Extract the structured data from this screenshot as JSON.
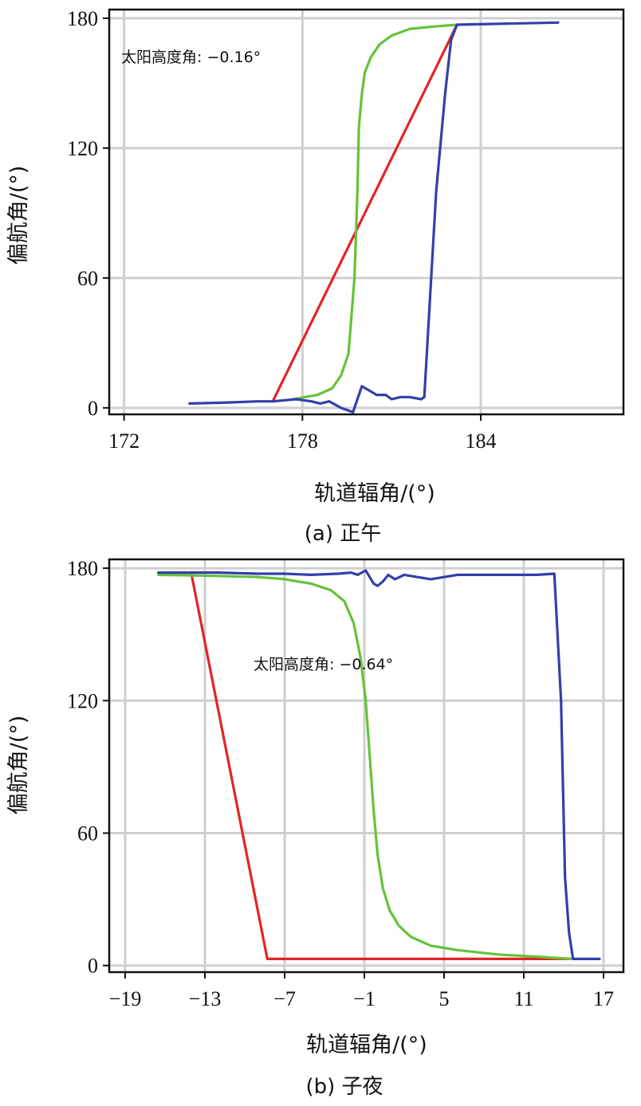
{
  "colors": {
    "red": "#e32424",
    "green": "#66c23a",
    "blue": "#3340a8",
    "grid": "#cfcfcf",
    "axis": "#111111"
  },
  "chart_data": [
    {
      "type": "line",
      "caption": "(a) 正午",
      "xlabel": "轨道辐角/(°)",
      "ylabel": "偏航角/(°)",
      "annotation": "太阳高度角: −0.16°",
      "xlim": [
        171.5,
        188.8
      ],
      "ylim": [
        -3,
        184
      ],
      "xticks": [
        172,
        178,
        184
      ],
      "xtick_labels": [
        "172",
        "178",
        "184"
      ],
      "yticks": [
        0,
        60,
        120,
        180
      ],
      "ytick_labels": [
        "0",
        "60",
        "120",
        "180"
      ],
      "grid": true,
      "series": [
        {
          "color": "red",
          "x": [
            177.0,
            183.2
          ],
          "y": [
            3,
            177
          ]
        },
        {
          "color": "green",
          "x": [
            177.7,
            178.5,
            179.0,
            179.3,
            179.55,
            179.75,
            179.85,
            179.9,
            180.0,
            180.1,
            180.3,
            180.6,
            181.0,
            181.6,
            182.3,
            183.2
          ],
          "y": [
            4,
            6,
            9,
            15,
            25,
            60,
            100,
            130,
            145,
            155,
            162,
            168,
            172,
            175,
            176,
            177
          ]
        },
        {
          "color": "blue",
          "x": [
            174.2,
            175.5,
            176.5,
            177.0,
            177.8,
            178.3,
            178.6,
            178.9,
            179.3,
            179.7,
            180.0,
            180.25,
            180.5,
            180.8,
            181.0,
            181.3,
            181.6,
            182.0,
            182.1,
            182.5,
            182.8,
            183.0,
            183.2,
            186.6
          ],
          "y": [
            2,
            2.5,
            3,
            3,
            4,
            3,
            2,
            3,
            0,
            -2,
            10,
            8,
            6,
            6,
            4,
            5,
            5,
            4,
            5,
            100,
            145,
            170,
            177,
            178
          ]
        }
      ]
    },
    {
      "type": "line",
      "caption": "(b) 子夜",
      "xlabel": "轨道辐角/(°)",
      "ylabel": "偏航角/(°)",
      "annotation": "太阳高度角: −0.64°",
      "xlim": [
        -20.2,
        18.5
      ],
      "ylim": [
        -3,
        184
      ],
      "xticks": [
        -19,
        -13,
        -7,
        -1,
        5,
        11,
        17
      ],
      "xtick_labels": [
        "−19",
        "−13",
        "−7",
        "−1",
        "5",
        "11",
        "17"
      ],
      "yticks": [
        0,
        60,
        120,
        180
      ],
      "ytick_labels": [
        "0",
        "60",
        "120",
        "180"
      ],
      "grid": true,
      "series": [
        {
          "color": "red",
          "x": [
            -14.0,
            -8.3,
            14.5
          ],
          "y": [
            177,
            3,
            3
          ]
        },
        {
          "color": "green",
          "x": [
            -16.5,
            -12,
            -9,
            -7,
            -5,
            -3.5,
            -2.5,
            -1.8,
            -1.3,
            -0.9,
            -0.6,
            -0.3,
            0.0,
            0.4,
            0.9,
            1.6,
            2.5,
            4,
            6,
            9,
            12,
            14.5
          ],
          "y": [
            177,
            176.5,
            176,
            175,
            173,
            170,
            165,
            155,
            140,
            120,
            95,
            70,
            50,
            35,
            25,
            18,
            13,
            9,
            7,
            5,
            4,
            3
          ]
        },
        {
          "color": "blue",
          "x": [
            -16.5,
            -12,
            -9,
            -7,
            -5,
            -3,
            -2,
            -1.5,
            -1.2,
            -0.9,
            -0.6,
            -0.3,
            0.0,
            0.4,
            0.8,
            1.3,
            2.0,
            3.0,
            4.0,
            5.0,
            6.0,
            8.0,
            10.0,
            12.0,
            13.3,
            13.8,
            14.1,
            14.4,
            14.7,
            16.7
          ],
          "y": [
            178,
            178,
            177.5,
            177.5,
            177,
            177.5,
            178,
            177,
            178,
            179,
            176,
            173,
            172,
            174,
            177,
            175,
            177,
            176,
            175,
            176,
            177,
            177,
            177,
            177,
            177.5,
            120,
            40,
            15,
            3,
            3
          ]
        }
      ]
    }
  ]
}
